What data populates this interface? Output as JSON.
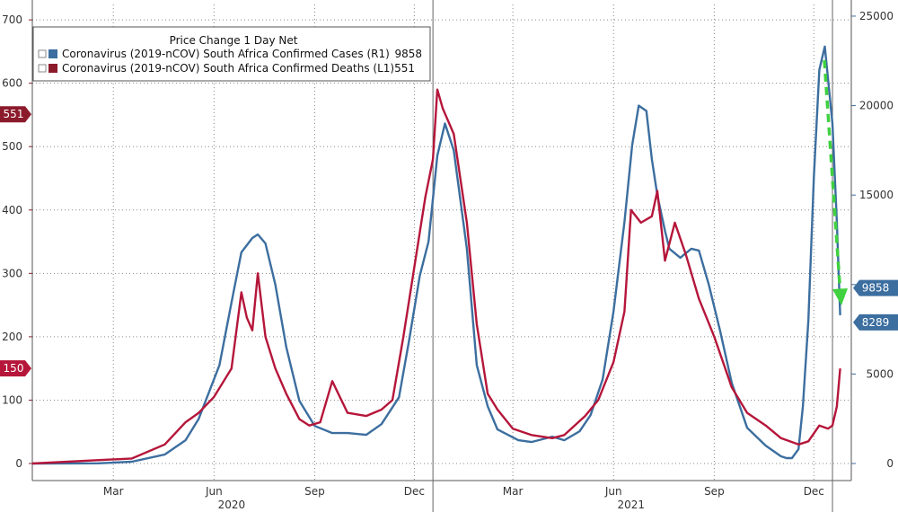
{
  "chart_data": {
    "type": "line",
    "legend": {
      "title": "Price Change 1 Day Net",
      "entries": [
        {
          "label": "Coronavirus (2019-nCOV) South Africa Confirmed Cases (R1)",
          "value": "9858",
          "color": "#3c6e9f"
        },
        {
          "label": "Coronavirus (2019-nCOV) South Africa Confirmed Deaths (L1)",
          "value": "551",
          "color": "#b5163a"
        }
      ]
    },
    "x_ticks": [
      "Mar",
      "Jun",
      "Sep",
      "Dec",
      "Mar",
      "Jun",
      "Sep",
      "Dec"
    ],
    "x_years": [
      "2020",
      "2021"
    ],
    "left_axis": {
      "ticks": [
        0,
        100,
        200,
        300,
        400,
        500,
        600,
        700
      ],
      "ylim": [
        0,
        720
      ]
    },
    "right_axis": {
      "ticks": [
        0,
        5000,
        10000,
        15000,
        20000,
        25000
      ],
      "ylim": [
        0,
        25500
      ]
    },
    "markers": {
      "left": [
        {
          "value": 551,
          "label": "551",
          "color": "#8b1a2b"
        },
        {
          "value": 150,
          "label": "150",
          "color": "#b5163a"
        }
      ],
      "right": [
        {
          "value": 9858,
          "label": "9858",
          "color": "#3c6e9f"
        },
        {
          "value": 8289,
          "label": "8289",
          "color": "#3c6e9f"
        }
      ]
    },
    "x_range": [
      "2020-01-01",
      "2022-01-10"
    ],
    "series": [
      {
        "name": "Coronavirus (2019-nCOV) South Africa Confirmed Cases (R1)",
        "axis": "right",
        "color": "#3c6e9f",
        "x": [
          "2020-01-01",
          "2020-03-01",
          "2020-04-01",
          "2020-05-01",
          "2020-05-20",
          "2020-06-01",
          "2020-06-20",
          "2020-07-01",
          "2020-07-10",
          "2020-07-20",
          "2020-07-25",
          "2020-08-01",
          "2020-08-10",
          "2020-08-20",
          "2020-09-01",
          "2020-09-15",
          "2020-10-01",
          "2020-10-15",
          "2020-11-01",
          "2020-11-15",
          "2020-12-01",
          "2020-12-10",
          "2020-12-20",
          "2020-12-28",
          "2021-01-05",
          "2021-01-12",
          "2021-01-20",
          "2021-02-01",
          "2021-02-10",
          "2021-02-20",
          "2021-03-01",
          "2021-03-20",
          "2021-04-01",
          "2021-04-20",
          "2021-05-01",
          "2021-05-15",
          "2021-05-25",
          "2021-06-05",
          "2021-06-15",
          "2021-06-25",
          "2021-07-02",
          "2021-07-08",
          "2021-07-15",
          "2021-07-20",
          "2021-07-25",
          "2021-08-01",
          "2021-08-05",
          "2021-08-15",
          "2021-08-25",
          "2021-09-01",
          "2021-09-10",
          "2021-09-20",
          "2021-10-01",
          "2021-10-15",
          "2021-11-01",
          "2021-11-15",
          "2021-11-20",
          "2021-11-25",
          "2021-12-01",
          "2021-12-05",
          "2021-12-10",
          "2021-12-15",
          "2021-12-20",
          "2021-12-25",
          "2022-01-01",
          "2022-01-05",
          "2022-01-08"
        ],
        "values": [
          0,
          10,
          100,
          500,
          1300,
          2500,
          5500,
          9000,
          11800,
          12600,
          12800,
          12300,
          10000,
          6500,
          3500,
          2100,
          1700,
          1700,
          1600,
          2200,
          3700,
          6800,
          10500,
          12400,
          17200,
          19000,
          17500,
          12000,
          5500,
          3200,
          1900,
          1300,
          1200,
          1500,
          1300,
          1800,
          2700,
          4700,
          8500,
          13500,
          17800,
          20000,
          19700,
          17000,
          15000,
          13000,
          12000,
          11500,
          12000,
          11900,
          10000,
          7500,
          4500,
          2000,
          1000,
          400,
          300,
          300,
          800,
          3200,
          8000,
          16000,
          22000,
          23300,
          19000,
          13500,
          8289
        ]
      },
      {
        "name": "Coronavirus (2019-nCOV) South Africa Confirmed Deaths (L1)",
        "axis": "left",
        "color": "#b5163a",
        "x": [
          "2020-01-01",
          "2020-04-01",
          "2020-05-01",
          "2020-05-20",
          "2020-06-01",
          "2020-06-15",
          "2020-07-01",
          "2020-07-10",
          "2020-07-15",
          "2020-07-20",
          "2020-07-25",
          "2020-08-01",
          "2020-08-10",
          "2020-08-20",
          "2020-09-01",
          "2020-09-10",
          "2020-09-20",
          "2020-10-01",
          "2020-10-15",
          "2020-11-01",
          "2020-11-15",
          "2020-11-25",
          "2020-12-05",
          "2020-12-15",
          "2020-12-25",
          "2021-01-01",
          "2021-01-05",
          "2021-01-10",
          "2021-01-20",
          "2021-02-01",
          "2021-02-10",
          "2021-02-20",
          "2021-03-01",
          "2021-03-15",
          "2021-04-01",
          "2021-04-20",
          "2021-05-01",
          "2021-05-20",
          "2021-06-01",
          "2021-06-15",
          "2021-06-25",
          "2021-07-01",
          "2021-07-10",
          "2021-07-20",
          "2021-07-25",
          "2021-08-01",
          "2021-08-10",
          "2021-08-20",
          "2021-09-01",
          "2021-09-15",
          "2021-10-01",
          "2021-10-15",
          "2021-11-01",
          "2021-11-15",
          "2021-12-01",
          "2021-12-10",
          "2021-12-20",
          "2021-12-28",
          "2022-01-01",
          "2022-01-05",
          "2022-01-08"
        ],
        "values": [
          0,
          8,
          30,
          65,
          80,
          105,
          150,
          270,
          230,
          210,
          300,
          200,
          150,
          110,
          70,
          60,
          65,
          130,
          80,
          75,
          85,
          100,
          200,
          310,
          420,
          480,
          590,
          560,
          520,
          380,
          220,
          110,
          85,
          55,
          45,
          40,
          45,
          75,
          100,
          160,
          240,
          400,
          380,
          390,
          430,
          320,
          380,
          330,
          260,
          200,
          120,
          80,
          60,
          40,
          30,
          35,
          60,
          55,
          60,
          90,
          150
        ]
      }
    ]
  }
}
